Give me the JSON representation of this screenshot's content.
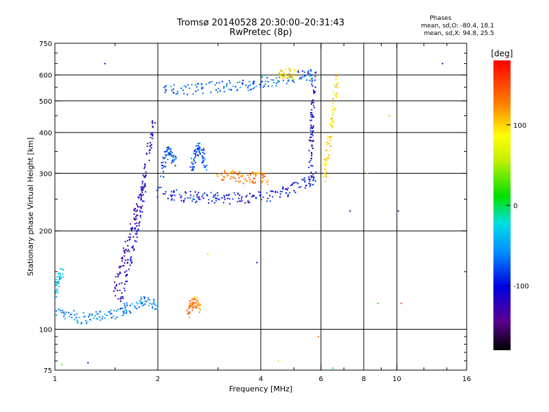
{
  "header": {
    "title_line1": "Tromsø 20140528 20:30:00–20:31:43",
    "title_line2": "RwPretec (8p)"
  },
  "phases_box": {
    "title": "Phases",
    "line_o": "mean, sd,O:  -80.4, 18.1",
    "line_x": "mean, sd,X:  94.8, 25.5"
  },
  "chart_data": {
    "type": "scatter",
    "xlabel": "Frequency [MHz]",
    "ylabel": "Stationary phase Virtual Height [km]",
    "xscale": "log",
    "yscale": "log",
    "xlim": [
      1,
      16
    ],
    "ylim": [
      75,
      750
    ],
    "xticks": [
      {
        "value": 1,
        "label": "1"
      },
      {
        "value": 2,
        "label": "2"
      },
      {
        "value": 4,
        "label": "4"
      },
      {
        "value": 6,
        "label": "6"
      },
      {
        "value": 8,
        "label": "8"
      },
      {
        "value": 10,
        "label": "10"
      },
      {
        "value": 16,
        "label": "16"
      }
    ],
    "xgrid": [
      2,
      4,
      6,
      8,
      10
    ],
    "xminor": [
      1.5,
      3,
      5,
      7,
      9,
      12,
      14
    ],
    "yticks": [
      {
        "value": 75,
        "label": "75"
      },
      {
        "value": 100,
        "label": "100"
      },
      {
        "value": 200,
        "label": "200"
      },
      {
        "value": 300,
        "label": "300"
      },
      {
        "value": 400,
        "label": "400"
      },
      {
        "value": 500,
        "label": "500"
      },
      {
        "value": 600,
        "label": "600"
      },
      {
        "value": 750,
        "label": "750"
      }
    ],
    "ygrid": [
      100,
      200,
      300,
      400,
      500,
      600
    ],
    "grid": true,
    "colorbar": {
      "label": "[deg]",
      "range": [
        -180,
        180
      ],
      "ticks": [
        {
          "value": 100,
          "label": "100"
        },
        {
          "value": 0,
          "label": "0"
        },
        {
          "value": -100,
          "label": "-100"
        }
      ]
    },
    "traces": [
      {
        "name": "",
        "f": [
          1.0,
          1.1,
          1.2,
          1.3,
          1.4,
          1.5,
          1.6,
          1.7,
          1.8,
          1.9,
          2.0
        ],
        "h": [
          112,
          110,
          108,
          109,
          110,
          112,
          115,
          118,
          122,
          120,
          118
        ],
        "phase": -60
      },
      {
        "name": "",
        "f": [
          1.0,
          1.01,
          1.03,
          1.05
        ],
        "h": [
          125,
          135,
          145,
          150
        ],
        "phase": -40
      },
      {
        "name": "",
        "f": [
          1.5,
          1.55,
          1.6,
          1.65,
          1.7,
          1.75,
          1.8,
          1.85,
          1.9,
          1.95
        ],
        "h": [
          130,
          150,
          170,
          190,
          215,
          240,
          270,
          320,
          380,
          440
        ],
        "phase": -120
      },
      {
        "name": "",
        "f": [
          1.55,
          1.6,
          1.65,
          1.7,
          1.75,
          1.8,
          1.85
        ],
        "h": [
          120,
          140,
          160,
          185,
          210,
          250,
          290
        ],
        "phase": -110
      },
      {
        "name": "",
        "f": [
          2.0,
          2.2,
          2.4,
          2.6,
          2.8,
          3.0,
          3.3,
          3.6,
          4.0,
          4.4,
          4.8,
          5.2,
          5.6,
          5.8
        ],
        "h": [
          262,
          258,
          255,
          254,
          253,
          252,
          251,
          252,
          254,
          258,
          265,
          275,
          285,
          300
        ],
        "phase": -95
      },
      {
        "name": "",
        "f": [
          2.05,
          2.1,
          2.15,
          2.2,
          2.25
        ],
        "h": [
          300,
          330,
          350,
          340,
          320
        ],
        "phase": -85
      },
      {
        "name": "",
        "f": [
          2.5,
          2.55,
          2.6,
          2.65,
          2.7,
          2.75
        ],
        "h": [
          300,
          330,
          350,
          360,
          340,
          310
        ],
        "phase": -80
      },
      {
        "name": "",
        "f": [
          3.0,
          3.2,
          3.4,
          3.6,
          3.8,
          4.0,
          4.2
        ],
        "h": [
          300,
          295,
          292,
          290,
          292,
          290,
          288
        ],
        "phase": 130
      },
      {
        "name": "",
        "f": [
          2.05,
          2.3,
          2.6,
          2.9,
          3.2,
          3.5,
          3.8,
          4.1,
          4.5,
          5.0,
          5.5,
          5.7
        ],
        "h": [
          535,
          540,
          545,
          550,
          555,
          555,
          560,
          570,
          580,
          590,
          595,
          600
        ],
        "phase": -70
      },
      {
        "name": "",
        "f": [
          4.5,
          4.7,
          4.9,
          5.1
        ],
        "h": [
          600,
          605,
          610,
          605
        ],
        "phase": 100
      },
      {
        "name": "",
        "f": [
          5.6,
          5.62,
          5.64,
          5.66,
          5.7,
          5.72
        ],
        "h": [
          320,
          360,
          400,
          450,
          520,
          600
        ],
        "phase": -110
      },
      {
        "name": "",
        "f": [
          6.1,
          6.2,
          6.3,
          6.4,
          6.5,
          6.6,
          6.7
        ],
        "h": [
          290,
          320,
          360,
          400,
          450,
          520,
          600
        ],
        "phase": 100
      },
      {
        "name": "",
        "f": [
          2.45,
          2.5,
          2.55,
          2.6,
          2.65
        ],
        "h": [
          112,
          118,
          122,
          120,
          115
        ],
        "phase": 130
      }
    ],
    "isolated_points": [
      {
        "f": 1.4,
        "h": 650,
        "phase": -100
      },
      {
        "f": 8.2,
        "h": 300,
        "phase": 100
      },
      {
        "f": 9.5,
        "h": 450,
        "phase": 120
      },
      {
        "f": 10.1,
        "h": 230,
        "phase": -150
      },
      {
        "f": 13.6,
        "h": 650,
        "phase": -120
      },
      {
        "f": 8.8,
        "h": 120,
        "phase": 20
      },
      {
        "f": 10.3,
        "h": 120,
        "phase": 150
      },
      {
        "f": 5.9,
        "h": 95,
        "phase": 130
      },
      {
        "f": 3.9,
        "h": 160,
        "phase": -100
      },
      {
        "f": 4.5,
        "h": 80,
        "phase": 100
      },
      {
        "f": 1.05,
        "h": 78,
        "phase": 30
      },
      {
        "f": 1.25,
        "h": 79,
        "phase": -100
      },
      {
        "f": 6.5,
        "h": 76,
        "phase": 0
      },
      {
        "f": 2.8,
        "h": 170,
        "phase": 100
      },
      {
        "f": 7.3,
        "h": 230,
        "phase": -150
      }
    ]
  }
}
